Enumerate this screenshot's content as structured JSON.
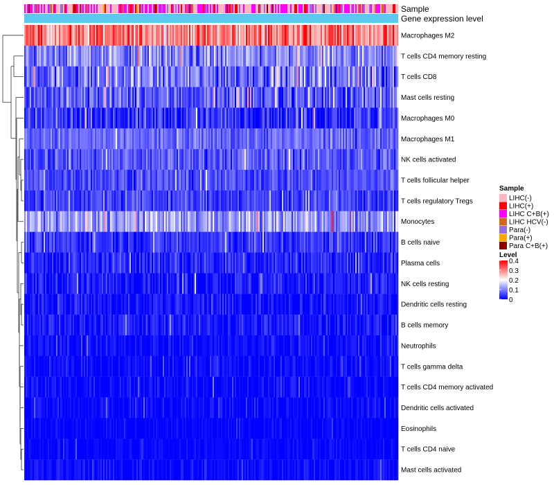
{
  "chart_data": {
    "type": "heatmap",
    "annotations": {
      "sample_label": "Sample",
      "expression_label": "Gene expression level",
      "expression_color": "#5bc8f0"
    },
    "rows": [
      {
        "name": "Macrophages M2",
        "mean": 0.3,
        "spread": 0.1
      },
      {
        "name": "T cells CD4 memory resting",
        "mean": 0.1,
        "spread": 0.08
      },
      {
        "name": "T cells CD8",
        "mean": 0.09,
        "spread": 0.09
      },
      {
        "name": "Mast cells resting",
        "mean": 0.07,
        "spread": 0.08
      },
      {
        "name": "Macrophages M0",
        "mean": 0.04,
        "spread": 0.07
      },
      {
        "name": "Macrophages M1",
        "mean": 0.08,
        "spread": 0.05
      },
      {
        "name": "NK cells activated",
        "mean": 0.07,
        "spread": 0.06
      },
      {
        "name": "T cells follicular helper",
        "mean": 0.06,
        "spread": 0.05
      },
      {
        "name": "T cells regulatory  Tregs",
        "mean": 0.05,
        "spread": 0.05
      },
      {
        "name": "Monocytes",
        "mean": 0.12,
        "spread": 0.08
      },
      {
        "name": "B cells naive",
        "mean": 0.04,
        "spread": 0.05
      },
      {
        "name": "Plasma cells",
        "mean": 0.03,
        "spread": 0.05
      },
      {
        "name": "NK cells resting",
        "mean": 0.02,
        "spread": 0.05
      },
      {
        "name": "Dendritic cells resting",
        "mean": 0.015,
        "spread": 0.04
      },
      {
        "name": "B cells memory",
        "mean": 0.02,
        "spread": 0.04
      },
      {
        "name": "Neutrophils",
        "mean": 0.01,
        "spread": 0.03
      },
      {
        "name": "T cells gamma delta",
        "mean": 0.008,
        "spread": 0.03
      },
      {
        "name": "T cells CD4 memory activated",
        "mean": 0.006,
        "spread": 0.03
      },
      {
        "name": "Dendritic cells activated",
        "mean": 0.006,
        "spread": 0.03
      },
      {
        "name": "Eosinophils",
        "mean": 0.003,
        "spread": 0.02
      },
      {
        "name": "T cells CD4 naive",
        "mean": 0.004,
        "spread": 0.02
      },
      {
        "name": "Mast cells activated",
        "mean": 0.008,
        "spread": 0.03
      }
    ],
    "n_columns": 270,
    "color_scale": {
      "title": "Level",
      "min": 0,
      "max": 0.4,
      "ticks": [
        {
          "value": 0.4,
          "label": "0.4"
        },
        {
          "value": 0.3,
          "label": "0.3"
        },
        {
          "value": 0.2,
          "label": "0.2"
        },
        {
          "value": 0.1,
          "label": "0.1"
        },
        {
          "value": 0,
          "label": "0"
        }
      ],
      "stops": [
        {
          "value": 0,
          "color": "#0000ff"
        },
        {
          "value": 0.2,
          "color": "#ffffff"
        },
        {
          "value": 0.4,
          "color": "#ff0000"
        }
      ]
    },
    "sample_legend": {
      "title": "Sample",
      "categories": [
        {
          "label": "LIHC(-)",
          "color": "#ffb6c1"
        },
        {
          "label": "LIHC(+)",
          "color": "#ff0000"
        },
        {
          "label": "LIHC C+B(+)",
          "color": "#ff00ff"
        },
        {
          "label": "LIHC HCV(-)",
          "color": "#d2691e"
        },
        {
          "label": "Para(-)",
          "color": "#9370db"
        },
        {
          "label": "Para(+)",
          "color": "#ffa500"
        },
        {
          "label": "Para C+B(+)",
          "color": "#8b0000"
        }
      ],
      "weights": [
        0.42,
        0.1,
        0.3,
        0.04,
        0.08,
        0.02,
        0.04
      ]
    }
  }
}
